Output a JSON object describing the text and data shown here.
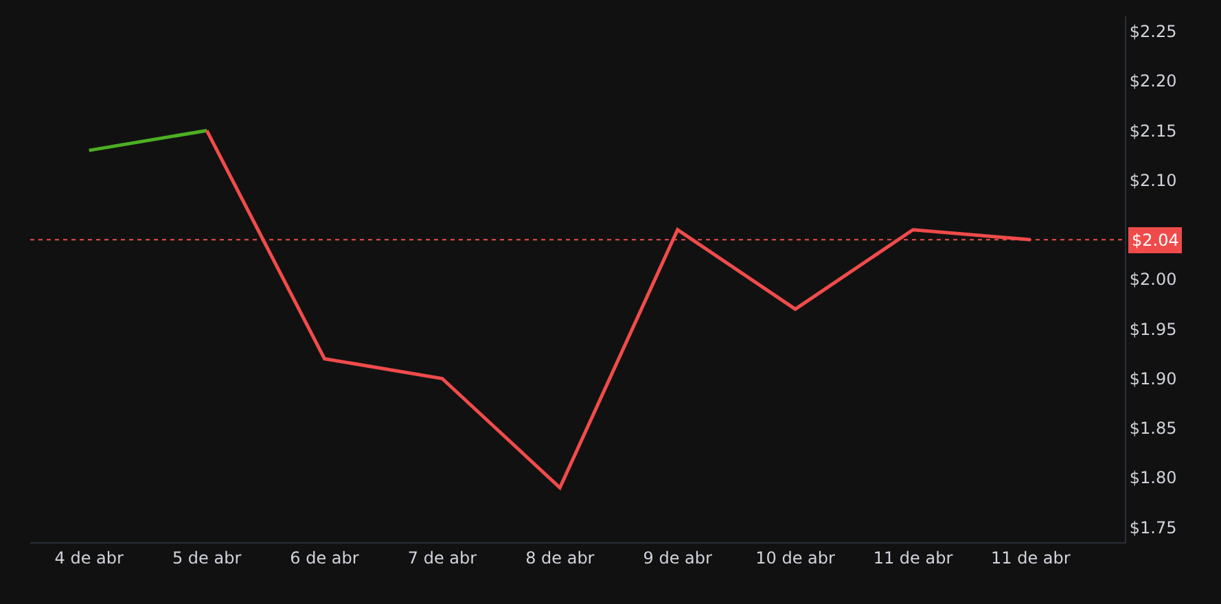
{
  "chart_data": {
    "type": "line",
    "categories": [
      "4 de abr",
      "5 de abr",
      "6 de abr",
      "7 de abr",
      "8 de abr",
      "9 de abr",
      "10 de abr",
      "11 de abr",
      "11 de abr"
    ],
    "series": [
      {
        "color": "#4caf22",
        "values": [
          2.13,
          2.15,
          null,
          null,
          null,
          null,
          null,
          null,
          null
        ]
      },
      {
        "color": "#f04b4b",
        "values": [
          null,
          2.15,
          1.92,
          1.9,
          1.79,
          2.05,
          1.97,
          2.05,
          2.04
        ]
      }
    ],
    "ylim": [
      1.735,
      2.265
    ],
    "yticks": [
      {
        "value": 1.75,
        "label": "$1.75"
      },
      {
        "value": 1.8,
        "label": "$1.80"
      },
      {
        "value": 1.85,
        "label": "$1.85"
      },
      {
        "value": 1.9,
        "label": "$1.90"
      },
      {
        "value": 1.95,
        "label": "$1.95"
      },
      {
        "value": 2.0,
        "label": "$2.00"
      },
      {
        "value": 2.1,
        "label": "$2.10"
      },
      {
        "value": 2.15,
        "label": "$2.15"
      },
      {
        "value": 2.2,
        "label": "$2.20"
      },
      {
        "value": 2.25,
        "label": "$2.25"
      }
    ],
    "ref_lines": [
      {
        "axis": "y",
        "value": 2.04,
        "label": "$2.04",
        "color": "#f04b4b",
        "line_style": "dotted"
      }
    ],
    "grid": false,
    "legend": false,
    "marker": "none",
    "line_style": "solid"
  }
}
